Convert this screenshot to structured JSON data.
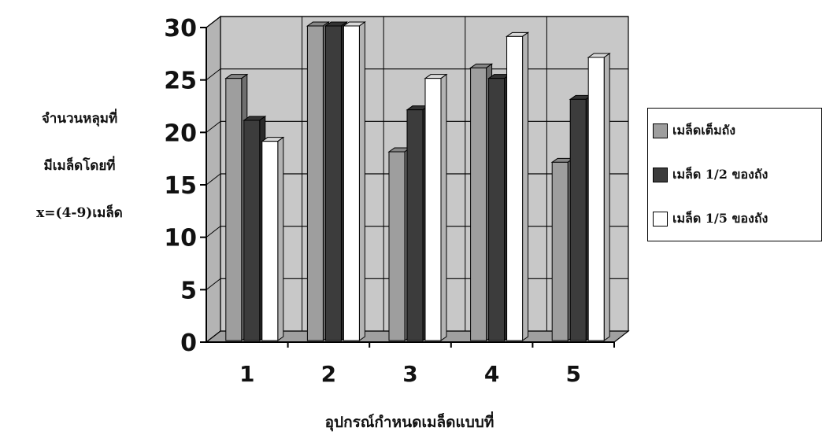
{
  "chart_data": {
    "type": "bar",
    "title": "",
    "ylabel_lines": [
      "จำนวนหลุมที่",
      "มีเมล็ดโดยที่",
      "x=(4-9)เมล็ด"
    ],
    "xlabel": "อุปกรณ์กำหนดเมล็ดแบบที่",
    "categories": [
      "1",
      "2",
      "3",
      "4",
      "5"
    ],
    "ylim": [
      0,
      30
    ],
    "yticks": [
      "0",
      "5",
      "10",
      "15",
      "20",
      "25",
      "30"
    ],
    "grid": true,
    "legend_position": "right",
    "series": [
      {
        "name": "เมล็ดเต็มถัง",
        "values": [
          25,
          30,
          18,
          26,
          17
        ],
        "color": "#9e9e9e"
      },
      {
        "name": "เมล็ด 1/2 ของถัง",
        "values": [
          21,
          30,
          22,
          25,
          23
        ],
        "color": "#3c3c3c"
      },
      {
        "name": "เมล็ด 1/5 ของถัง",
        "values": [
          19,
          30,
          25,
          29,
          27
        ],
        "color": "#ffffff"
      }
    ]
  }
}
